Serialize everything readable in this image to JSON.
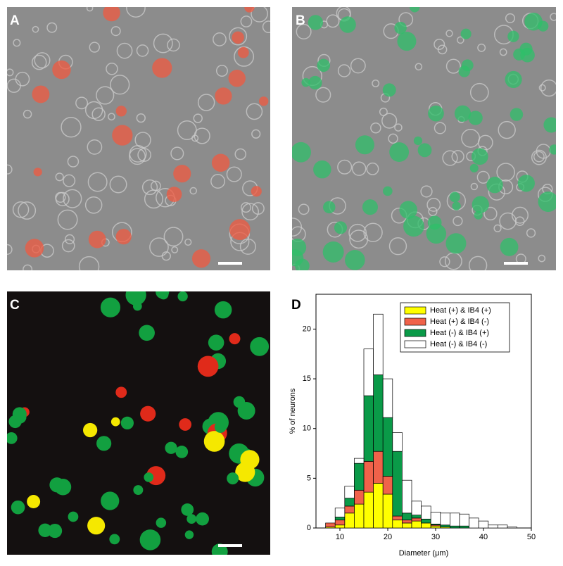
{
  "panels": [
    "A",
    "B",
    "C",
    "D"
  ],
  "chart_data": {
    "type": "histogram",
    "xlabel": "Diameter (μm)",
    "ylabel": "% of neurons",
    "bins": [
      7,
      9,
      11,
      13,
      15,
      17,
      19,
      21,
      23,
      25,
      27,
      29,
      31,
      33,
      35,
      37,
      39,
      41,
      43,
      45,
      47
    ],
    "series": [
      {
        "name": "Heat (+) & IB4 (+)",
        "color": "#ffff00",
        "values": [
          0.1,
          0.3,
          1.5,
          2.4,
          3.6,
          4.5,
          3.4,
          0.8,
          0.5,
          0.7,
          0.5,
          0.2,
          0.1,
          0,
          0,
          0,
          0,
          0,
          0,
          0
        ]
      },
      {
        "name": "Heat (+) & IB4 (-)",
        "color": "#f0624a",
        "values": [
          0.4,
          0.5,
          0.7,
          1.4,
          3.1,
          3.2,
          1.8,
          0.4,
          0.3,
          0.3,
          0,
          0.1,
          0,
          0,
          0,
          0,
          0,
          0,
          0,
          0
        ]
      },
      {
        "name": "Heat (-) & IB4 (+)",
        "color": "#0a9a48",
        "values": [
          0,
          0.3,
          0.8,
          2.7,
          6.6,
          7.7,
          5.9,
          6.5,
          0.7,
          0.3,
          0.4,
          0.1,
          0.2,
          0.2,
          0.2,
          0,
          0,
          0,
          0,
          0
        ]
      },
      {
        "name": "Heat (-) & IB4 (-)",
        "color": "#ffffff",
        "values": [
          0,
          0.9,
          1.2,
          0.5,
          4.7,
          6.1,
          3.9,
          1.9,
          3.3,
          1.4,
          1.3,
          1.2,
          1.2,
          1.3,
          1.2,
          1.0,
          0.7,
          0.3,
          0.3,
          0.1
        ]
      }
    ],
    "xlim": [
      5,
      50
    ],
    "xticks": [
      10,
      20,
      30,
      40,
      50
    ],
    "ylim": [
      0,
      23.5
    ],
    "yticks": [
      0,
      5,
      10,
      15,
      20
    ],
    "legend": "upper right"
  }
}
